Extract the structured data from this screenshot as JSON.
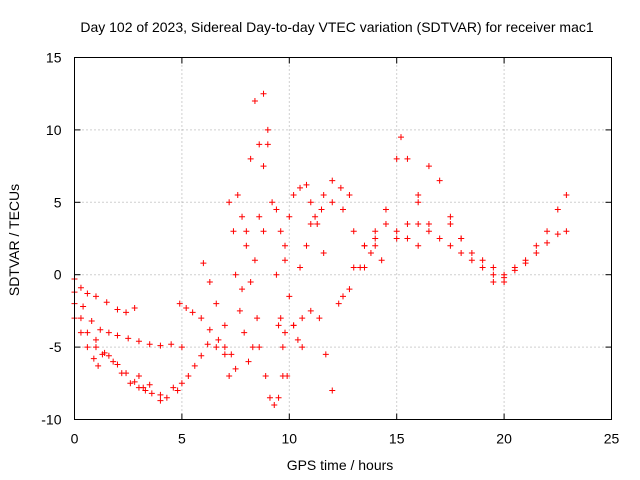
{
  "chart_data": {
    "type": "scatter",
    "title": "Day 102 of 2023, Sidereal Day-to-day VTEC variation (SDTVAR) for receiver mac1",
    "xlabel": "GPS time / hours",
    "ylabel": "SDTVAR / TECUs",
    "xlim": [
      0,
      25
    ],
    "ylim": [
      -10,
      15
    ],
    "xticks": [
      0,
      5,
      10,
      15,
      20,
      25
    ],
    "yticks": [
      -10,
      -5,
      0,
      5,
      10,
      15
    ],
    "xtick_labels": [
      "0",
      "5",
      "10",
      "15",
      "20",
      "25"
    ],
    "ytick_labels": [
      "-10",
      "-5",
      "0",
      "5",
      "10",
      "15"
    ],
    "grid": true,
    "marker": "+",
    "color": "#ff0000",
    "series": [
      {
        "name": "track-1",
        "x": [
          0.0,
          0.3,
          0.6,
          1.0,
          1.5,
          2.0,
          2.4,
          2.8
        ],
        "y": [
          -0.3,
          -0.9,
          -1.3,
          -1.5,
          -1.9,
          -2.4,
          -2.6,
          -2.3
        ]
      },
      {
        "name": "track-2",
        "x": [
          0.0,
          0.4,
          0.8,
          1.2,
          1.6,
          2.0,
          2.5,
          3.0,
          3.5,
          4.0,
          4.5,
          5.0
        ],
        "y": [
          -1.2,
          -2.2,
          -3.2,
          -3.8,
          -4.0,
          -4.2,
          -4.4,
          -4.6,
          -4.8,
          -4.9,
          -4.8,
          -5.0
        ]
      },
      {
        "name": "track-3",
        "x": [
          0.0,
          0.3,
          0.6,
          1.0,
          1.3,
          1.6,
          2.0,
          2.4,
          2.8,
          3.2,
          3.6,
          4.0
        ],
        "y": [
          -2.0,
          -3.0,
          -4.0,
          -5.0,
          -5.5,
          -5.6,
          -6.2,
          -6.8,
          -7.4,
          -7.8,
          -8.2,
          -8.7
        ]
      },
      {
        "name": "track-4",
        "x": [
          0.0,
          0.3,
          0.6,
          0.9,
          1.1
        ],
        "y": [
          -3.0,
          -4.0,
          -5.0,
          -5.8,
          -6.3
        ]
      },
      {
        "name": "track-5",
        "x": [
          1.0,
          1.4,
          1.8,
          2.2,
          2.6,
          3.0,
          3.3
        ],
        "y": [
          -4.5,
          -5.4,
          -6.0,
          -6.8,
          -7.5,
          -7.8,
          -8.0
        ]
      },
      {
        "name": "track-6",
        "x": [
          3.0,
          3.5,
          4.0,
          4.3,
          4.6,
          4.8,
          5.0,
          5.3,
          5.6,
          5.9
        ],
        "y": [
          -7.0,
          -7.6,
          -8.3,
          -8.5,
          -7.8,
          -8.0,
          -7.5,
          -7.0,
          -6.3,
          -5.6
        ]
      },
      {
        "name": "track-7",
        "x": [
          4.9,
          5.2,
          5.5,
          5.9,
          6.3,
          6.7,
          7.0
        ],
        "y": [
          -2.0,
          -2.3,
          -2.6,
          -3.0,
          -3.8,
          -4.5,
          -5.0
        ]
      },
      {
        "name": "track-8",
        "x": [
          6.0,
          6.3,
          6.6,
          7.0,
          7.3,
          7.5
        ],
        "y": [
          0.8,
          -0.5,
          -2.0,
          -3.5,
          -5.5,
          -6.5
        ]
      },
      {
        "name": "track-9",
        "x": [
          6.2,
          6.6,
          7.0,
          7.2
        ],
        "y": [
          -4.8,
          -5.0,
          -5.5,
          -7.0
        ]
      },
      {
        "name": "track-10",
        "x": [
          7.2,
          7.4,
          7.5,
          7.7,
          7.9,
          8.1,
          8.3,
          8.5
        ],
        "y": [
          5.0,
          3.0,
          0.0,
          -2.5,
          -4.0,
          -6.0,
          -5.0,
          -3.0
        ]
      },
      {
        "name": "track-11",
        "x": [
          7.6,
          7.8,
          8.0,
          8.2,
          8.4,
          8.6,
          8.8,
          9.0
        ],
        "y": [
          5.5,
          4.0,
          2.0,
          -0.5,
          1.0,
          4.0,
          7.5,
          9.0
        ]
      },
      {
        "name": "track-12",
        "x": [
          7.8,
          8.0,
          8.2,
          8.4,
          8.6,
          8.8
        ],
        "y": [
          -1.0,
          3.0,
          8.0,
          12.0,
          9.0,
          3.0
        ]
      },
      {
        "name": "track-13",
        "x": [
          8.8,
          9.0,
          9.2,
          9.4,
          9.6,
          9.7,
          9.9
        ],
        "y": [
          12.5,
          10.0,
          5.0,
          0.0,
          -3.0,
          -5.0,
          -7.0
        ]
      },
      {
        "name": "track-14",
        "x": [
          8.6,
          8.9,
          9.1,
          9.3,
          9.5,
          9.7
        ],
        "y": [
          -5.0,
          -7.0,
          -8.5,
          -9.0,
          -8.5,
          -7.0
        ]
      },
      {
        "name": "track-15",
        "x": [
          9.4,
          9.6,
          9.8,
          10.0,
          10.2,
          10.4,
          10.6
        ],
        "y": [
          4.5,
          3.0,
          1.0,
          -1.5,
          -3.5,
          -4.5,
          -5.0
        ]
      },
      {
        "name": "track-16",
        "x": [
          9.8,
          10.0,
          10.2,
          10.5,
          10.8,
          11.0,
          11.3,
          11.6
        ],
        "y": [
          2.0,
          4.0,
          5.5,
          6.0,
          6.2,
          5.0,
          3.5,
          1.5
        ]
      },
      {
        "name": "track-17",
        "x": [
          9.5,
          9.8,
          10.2,
          10.6,
          11.0,
          11.4,
          11.7,
          12.0
        ],
        "y": [
          -3.5,
          -4.0,
          -3.5,
          -3.0,
          -2.5,
          -3.0,
          -5.5,
          -8.0
        ]
      },
      {
        "name": "track-18",
        "x": [
          10.5,
          10.8,
          11.2,
          11.6,
          12.0,
          12.4,
          12.8
        ],
        "y": [
          0.5,
          2.0,
          4.0,
          5.5,
          6.5,
          6.0,
          5.5
        ]
      },
      {
        "name": "track-19",
        "x": [
          11.0,
          11.5,
          12.0,
          12.5,
          13.0,
          13.5,
          14.0
        ],
        "y": [
          3.5,
          4.5,
          5.0,
          4.5,
          3.0,
          2.0,
          2.5
        ]
      },
      {
        "name": "track-20",
        "x": [
          12.5,
          13.0,
          13.5,
          14.0,
          14.5,
          15.0,
          15.5,
          16.0
        ],
        "y": [
          -1.5,
          0.5,
          2.0,
          3.0,
          3.5,
          3.0,
          2.5,
          2.0
        ]
      },
      {
        "name": "track-21",
        "x": [
          12.3,
          12.8,
          13.3,
          13.8,
          14.3
        ],
        "y": [
          -2.0,
          -1.0,
          0.5,
          1.5,
          1.0
        ]
      },
      {
        "name": "track-22",
        "x": [
          13.5,
          14.0,
          14.5,
          15.0,
          15.2,
          15.5,
          16.0,
          16.5
        ],
        "y": [
          0.5,
          2.0,
          4.5,
          8.0,
          9.5,
          8.0,
          5.0,
          3.5
        ]
      },
      {
        "name": "track-23",
        "x": [
          15.0,
          15.5,
          16.0,
          16.5,
          17.0,
          17.5,
          18.0
        ],
        "y": [
          2.5,
          3.5,
          5.5,
          7.5,
          6.5,
          4.0,
          2.5
        ]
      },
      {
        "name": "track-24",
        "x": [
          16.0,
          16.5,
          17.0,
          17.5,
          18.0,
          18.5,
          19.0,
          19.5,
          20.0
        ],
        "y": [
          3.5,
          3.0,
          2.5,
          2.0,
          1.5,
          1.0,
          0.5,
          0.0,
          -0.5
        ]
      },
      {
        "name": "track-25",
        "x": [
          17.5,
          18.0,
          18.5,
          19.0,
          19.5,
          20.0,
          20.5,
          21.0,
          21.5,
          22.0,
          22.5,
          22.9
        ],
        "y": [
          3.5,
          2.5,
          1.5,
          1.0,
          0.5,
          0.0,
          0.5,
          1.0,
          2.0,
          3.0,
          4.5,
          5.5
        ]
      },
      {
        "name": "track-26",
        "x": [
          19.5,
          20.0,
          20.5,
          21.0,
          21.5,
          22.0,
          22.5,
          22.9
        ],
        "y": [
          -0.5,
          -0.2,
          0.3,
          0.8,
          1.5,
          2.2,
          2.8,
          3.0
        ]
      }
    ]
  }
}
